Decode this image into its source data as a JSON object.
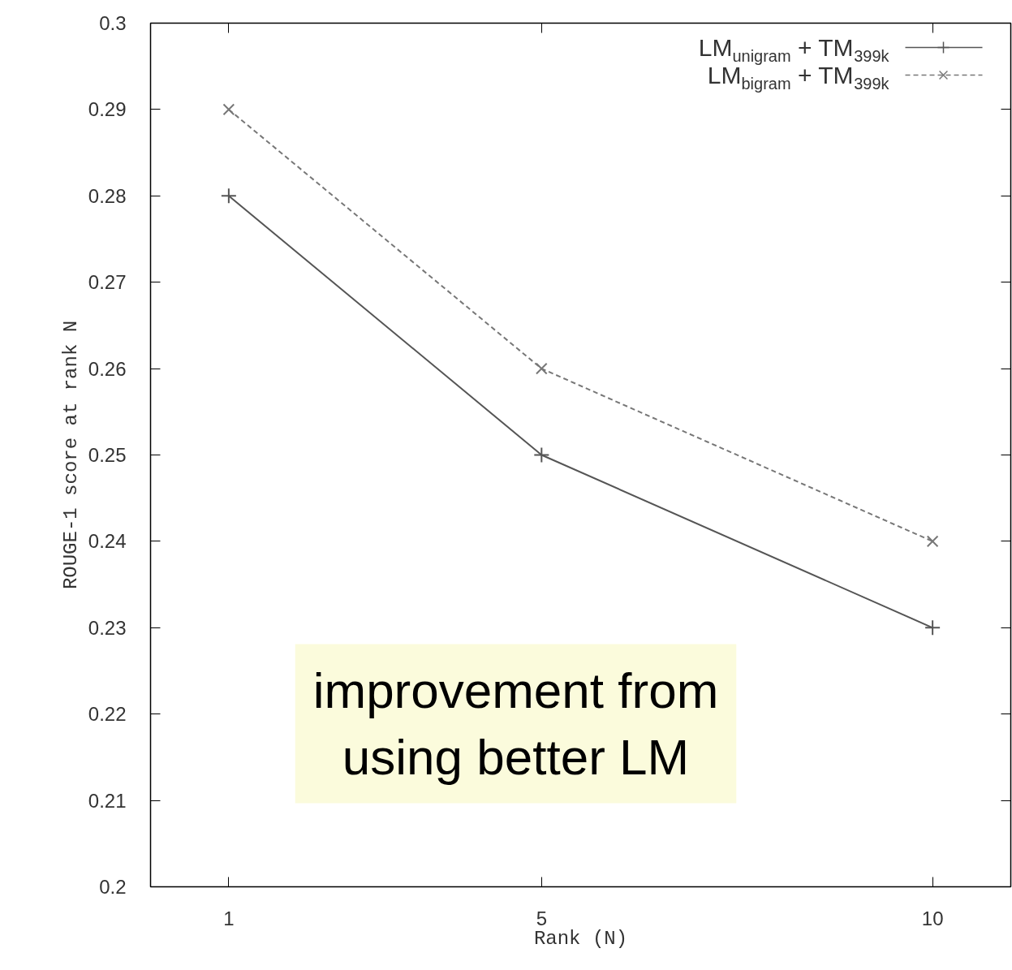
{
  "chart_data": {
    "type": "line",
    "xlabel": "Rank (N)",
    "ylabel": "ROUGE-1 score at rank N",
    "x": [
      1,
      5,
      10
    ],
    "series": [
      {
        "name": "LM$_{unigram}$ + TM$_{399k}$",
        "color": "#555555",
        "values": [
          0.28,
          0.25,
          0.23
        ],
        "marker": "cross",
        "line_style": "solid"
      },
      {
        "name": "LM$_{bigram}$ + TM$_{399k}$",
        "color": "#777777",
        "values": [
          0.29,
          0.26,
          0.24
        ],
        "marker": "x",
        "line_style": "dashed"
      }
    ],
    "xlim": [
      0,
      11
    ],
    "xticks": [
      1,
      5,
      10
    ],
    "ylim": [
      0.2,
      0.3
    ],
    "yticks": [
      0.2,
      0.21,
      0.22,
      0.23,
      0.24,
      0.25,
      0.26,
      0.27,
      0.28,
      0.29,
      0.3
    ],
    "grid": false,
    "legend": "top right",
    "annotations": [
      "improvement from\nusing better LM"
    ]
  }
}
